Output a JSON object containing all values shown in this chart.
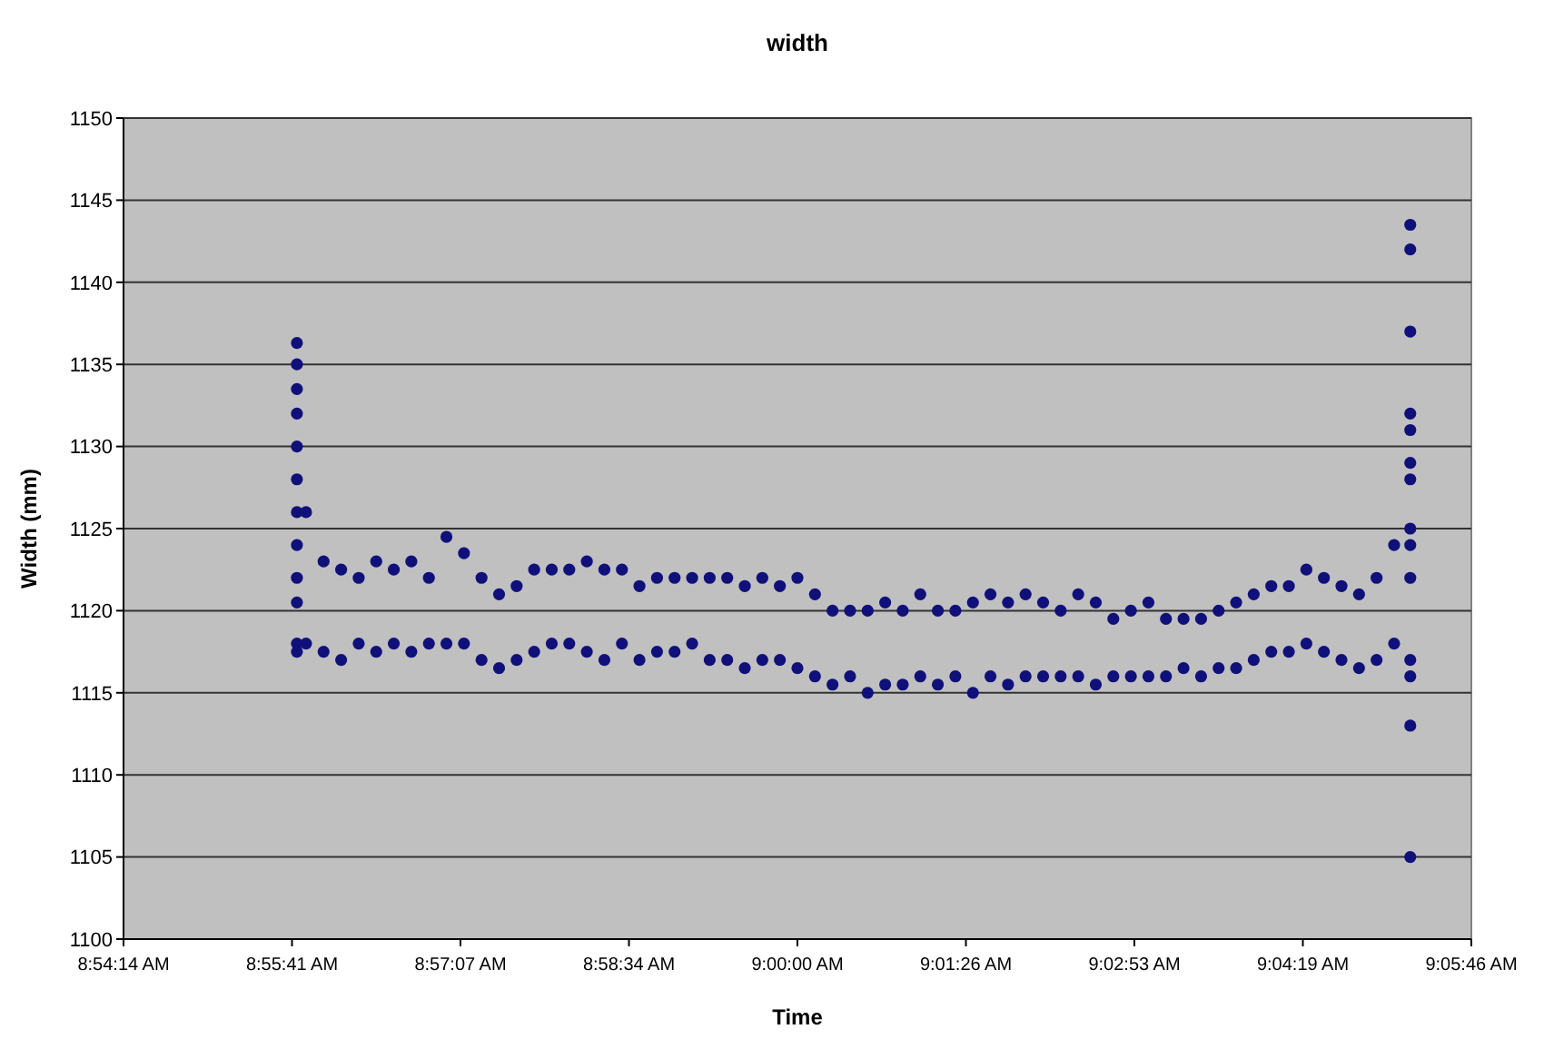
{
  "chart_data": {
    "type": "scatter",
    "title": "width",
    "xlabel": "Time",
    "ylabel": "Width (mm)",
    "marker": "circle",
    "grid": "y",
    "xlim": [
      8.904,
      9.096
    ],
    "xticks": [
      {
        "value": 8.904,
        "label": "8:54:14 AM"
      },
      {
        "value": 8.928,
        "label": "8:55:41 AM"
      },
      {
        "value": 8.952,
        "label": "8:57:07 AM"
      },
      {
        "value": 8.976,
        "label": "8:58:34 AM"
      },
      {
        "value": 9.0,
        "label": "9:00:00 AM"
      },
      {
        "value": 9.024,
        "label": "9:01:26 AM"
      },
      {
        "value": 9.048,
        "label": "9:02:53 AM"
      },
      {
        "value": 9.072,
        "label": "9:04:19 AM"
      },
      {
        "value": 9.096,
        "label": "9:05:46 AM"
      }
    ],
    "ylim": [
      1100,
      1150
    ],
    "yticks": [
      1100,
      1105,
      1110,
      1115,
      1120,
      1125,
      1130,
      1135,
      1140,
      1145,
      1150
    ],
    "series": [
      {
        "color": "#10107a",
        "x": [
          8.9287,
          8.9287,
          8.9287,
          8.9287,
          8.9287,
          8.9287,
          8.9287,
          8.9287,
          8.9287,
          8.9287,
          8.9287,
          8.9287,
          8.93,
          8.93,
          8.9325,
          8.9325,
          8.935,
          8.935,
          8.9375,
          8.9375,
          8.94,
          8.94,
          8.9425,
          8.9425,
          8.945,
          8.945,
          8.9475,
          8.9475,
          8.95,
          8.95,
          8.9525,
          8.9525,
          8.955,
          8.955,
          8.9575,
          8.9575,
          8.96,
          8.96,
          8.9625,
          8.9625,
          8.965,
          8.965,
          8.9675,
          8.9675,
          8.97,
          8.97,
          8.9725,
          8.9725,
          8.975,
          8.975,
          8.9775,
          8.9775,
          8.98,
          8.98,
          8.9825,
          8.9825,
          8.985,
          8.985,
          8.9875,
          8.9875,
          8.99,
          8.99,
          8.9925,
          8.9925,
          8.995,
          8.995,
          8.9975,
          8.9975,
          9.0,
          9.0,
          9.0025,
          9.0025,
          9.005,
          9.005,
          9.0075,
          9.0075,
          9.01,
          9.01,
          9.0125,
          9.0125,
          9.015,
          9.015,
          9.0175,
          9.0175,
          9.02,
          9.02,
          9.0225,
          9.0225,
          9.025,
          9.025,
          9.0275,
          9.0275,
          9.03,
          9.03,
          9.0325,
          9.0325,
          9.035,
          9.035,
          9.0375,
          9.0375,
          9.04,
          9.04,
          9.0425,
          9.0425,
          9.045,
          9.045,
          9.0475,
          9.0475,
          9.05,
          9.05,
          9.0525,
          9.0525,
          9.055,
          9.055,
          9.0575,
          9.0575,
          9.06,
          9.06,
          9.0625,
          9.0625,
          9.065,
          9.065,
          9.0675,
          9.0675,
          9.07,
          9.07,
          9.0725,
          9.0725,
          9.075,
          9.075,
          9.0775,
          9.0775,
          9.08,
          9.08,
          9.0825,
          9.0825,
          9.085,
          9.085,
          9.0873,
          9.0873,
          9.0873,
          9.0873,
          9.0873,
          9.0873,
          9.0873,
          9.0873,
          9.0873,
          9.0873,
          9.0873,
          9.0873,
          9.0873,
          9.0873
        ],
        "values": [
          1136.3,
          1135,
          1133.5,
          1132,
          1130,
          1128,
          1126,
          1124,
          1122,
          1120.5,
          1118,
          1117.5,
          1126,
          1118,
          1123,
          1117.5,
          1122.5,
          1117,
          1122,
          1118,
          1123,
          1117.5,
          1122.5,
          1118,
          1123,
          1117.5,
          1122,
          1118,
          1124.5,
          1118,
          1123.5,
          1118,
          1122,
          1117,
          1121,
          1116.5,
          1121.5,
          1117,
          1122.5,
          1117.5,
          1122.5,
          1118,
          1122.5,
          1118,
          1123,
          1117.5,
          1122.5,
          1117,
          1122.5,
          1118,
          1121.5,
          1117,
          1122,
          1117.5,
          1122,
          1117.5,
          1122,
          1118,
          1122,
          1117,
          1122,
          1117,
          1121.5,
          1116.5,
          1122,
          1117,
          1121.5,
          1117,
          1122,
          1116.5,
          1121,
          1116,
          1120,
          1115.5,
          1120,
          1116,
          1120,
          1115,
          1120.5,
          1115.5,
          1120,
          1115.5,
          1121,
          1116,
          1120,
          1115.5,
          1120,
          1116,
          1120.5,
          1115,
          1121,
          1116,
          1120.5,
          1115.5,
          1121,
          1116,
          1120.5,
          1116,
          1120,
          1116,
          1121,
          1116,
          1120.5,
          1115.5,
          1119.5,
          1116,
          1120,
          1116,
          1120.5,
          1116,
          1119.5,
          1116,
          1119.5,
          1116.5,
          1119.5,
          1116,
          1120,
          1116.5,
          1120.5,
          1116.5,
          1121,
          1117,
          1121.5,
          1117.5,
          1121.5,
          1117.5,
          1122.5,
          1118,
          1122,
          1117.5,
          1121.5,
          1117,
          1121,
          1116.5,
          1122,
          1117,
          1124,
          1118,
          1143.5,
          1142,
          1137,
          1132,
          1131,
          1129,
          1128,
          1125,
          1124,
          1122,
          1117,
          1116,
          1113,
          1105
        ]
      }
    ]
  }
}
